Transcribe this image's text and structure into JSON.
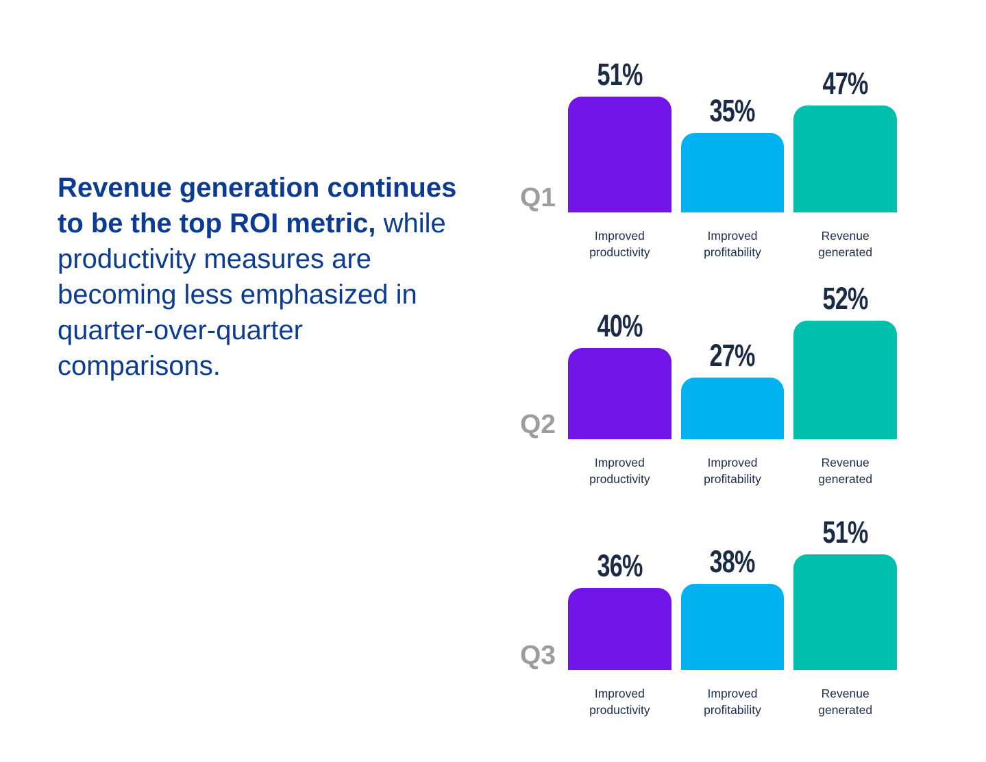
{
  "intro": {
    "color": "#0C3B92",
    "full_text": "Revenue generation continues to be the top ROI metric, while productivity measures are becoming less emphasized in quarter-over-quarter comparisons.",
    "lines": [
      {
        "bold": "Revenue generation continues",
        "rest": ""
      },
      {
        "bold": "to be the top ROI metric,",
        "rest": " while"
      },
      {
        "bold": "",
        "rest": "productivity measures are"
      },
      {
        "bold": "",
        "rest": "becoming less emphasized in"
      },
      {
        "bold": "",
        "rest": "quarter-over-quarter"
      },
      {
        "bold": "",
        "rest": "comparisons."
      }
    ]
  },
  "chart_data": {
    "type": "bar",
    "title": "",
    "unit": "%",
    "categories": [
      "Improved productivity",
      "Improved profitability",
      "Revenue generated"
    ],
    "groups": [
      "Q1",
      "Q2",
      "Q3"
    ],
    "series": [
      {
        "name": "Q1",
        "values": [
          51,
          35,
          47
        ],
        "labels": [
          "51%",
          "35%",
          "47%"
        ]
      },
      {
        "name": "Q2",
        "values": [
          40,
          27,
          52
        ],
        "labels": [
          "40%",
          "27%",
          "52%"
        ]
      },
      {
        "name": "Q3",
        "values": [
          36,
          38,
          51
        ],
        "labels": [
          "36%",
          "38%",
          "51%"
        ]
      }
    ],
    "bar_colors": [
      "#7214E8",
      "#00B2F0",
      "#00BFAC"
    ],
    "value_label_color": "#1B2B45",
    "group_label_color": "#9D9D9F",
    "category_label_color": "#1E2C4E",
    "ylim": [
      0,
      60
    ],
    "grid": false,
    "legend": "none",
    "layout": "three stacked single-quarter bar groups, values labeled above bars, quarter label left of baseline"
  }
}
